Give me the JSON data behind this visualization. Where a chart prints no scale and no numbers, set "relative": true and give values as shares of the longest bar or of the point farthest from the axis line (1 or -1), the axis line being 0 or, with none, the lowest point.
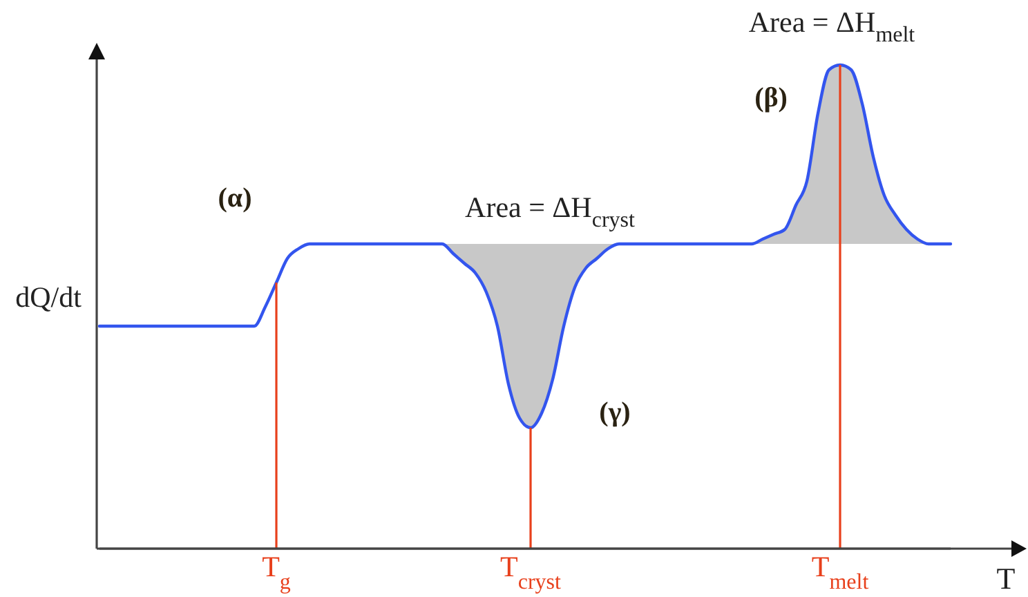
{
  "chart_data": {
    "type": "line",
    "relative": true,
    "tick_labels": "x",
    "xlabel": "T",
    "ylabel": "dQ/dt",
    "categories": [
      null,
      null,
      null,
      null,
      null,
      null,
      null,
      null,
      null,
      null,
      null,
      null,
      null,
      null,
      null,
      null,
      "T$_{g}$",
      null,
      null,
      null,
      null,
      null,
      null,
      null,
      null,
      null,
      null,
      null,
      null,
      null,
      null,
      null,
      null,
      null,
      null,
      null,
      null,
      null,
      null,
      "T$_{cryst}$",
      null,
      null,
      null,
      null,
      null,
      null,
      null,
      null,
      null,
      null,
      null,
      null,
      null,
      null,
      null,
      null,
      null,
      null,
      null,
      null,
      null,
      null,
      null,
      null,
      null,
      null,
      null,
      "T$_{melt}$",
      null,
      null,
      null,
      null,
      null,
      null,
      null,
      null,
      null,
      null
    ],
    "series": [
      {
        "color": "#3355ee",
        "values": [
          0.46,
          0.46,
          0.46,
          0.46,
          0.46,
          0.46,
          0.46,
          0.46,
          0.46,
          0.46,
          0.46,
          0.46,
          0.46,
          0.46,
          0.46,
          0.5,
          0.55,
          0.6,
          0.62,
          0.63,
          0.63,
          0.63,
          0.63,
          0.63,
          0.63,
          0.63,
          0.63,
          0.63,
          0.63,
          0.63,
          0.63,
          0.63,
          0.61,
          0.59,
          0.57,
          0.53,
          0.46,
          0.34,
          0.27,
          0.25,
          0.28,
          0.35,
          0.46,
          0.54,
          0.58,
          0.6,
          0.62,
          0.63,
          0.63,
          0.63,
          0.63,
          0.63,
          0.63,
          0.63,
          0.63,
          0.63,
          0.63,
          0.63,
          0.63,
          0.63,
          0.64,
          0.65,
          0.66,
          0.71,
          0.76,
          0.9,
          0.99,
          1,
          0.99,
          0.92,
          0.81,
          0.73,
          0.69,
          0.66,
          0.64,
          0.63,
          0.63,
          0.63
        ],
        "lower": [
          null,
          null,
          null,
          null,
          null,
          null,
          null,
          null,
          null,
          null,
          null,
          null,
          null,
          null,
          null,
          null,
          null,
          null,
          null,
          null,
          null,
          null,
          null,
          null,
          null,
          null,
          null,
          null,
          null,
          null,
          null,
          0.63,
          0.61,
          0.59,
          0.57,
          0.53,
          0.46,
          0.34,
          0.27,
          0.25,
          0.28,
          0.35,
          0.46,
          0.54,
          0.58,
          0.6,
          0.62,
          0.63,
          null,
          null,
          null,
          null,
          null,
          null,
          null,
          null,
          null,
          null,
          null,
          0.63,
          0.63,
          0.63,
          0.63,
          0.63,
          0.63,
          0.63,
          0.63,
          0.63,
          0.63,
          0.63,
          0.63,
          0.63,
          0.63,
          0.63,
          0.63,
          0.63,
          null,
          null
        ],
        "upper": [
          null,
          null,
          null,
          null,
          null,
          null,
          null,
          null,
          null,
          null,
          null,
          null,
          null,
          null,
          null,
          null,
          null,
          null,
          null,
          null,
          null,
          null,
          null,
          null,
          null,
          null,
          null,
          null,
          null,
          null,
          null,
          0.63,
          0.63,
          0.63,
          0.63,
          0.63,
          0.63,
          0.63,
          0.63,
          0.63,
          0.63,
          0.63,
          0.63,
          0.63,
          0.63,
          0.63,
          0.63,
          0.63,
          null,
          null,
          null,
          null,
          null,
          null,
          null,
          null,
          null,
          null,
          null,
          0.63,
          0.64,
          0.65,
          0.66,
          0.71,
          0.76,
          0.9,
          0.99,
          1,
          0.99,
          0.92,
          0.81,
          0.73,
          0.69,
          0.66,
          0.64,
          0.63,
          null,
          null
        ]
      }
    ],
    "ref_lines": [
      {
        "axis": "x",
        "value": "T$_{g}$",
        "color": "#e8401c"
      },
      {
        "axis": "x",
        "value": "T$_{cryst}$",
        "color": "#e8401c"
      },
      {
        "axis": "x",
        "value": "T$_{melt}$",
        "color": "#e8401c"
      }
    ],
    "annotations": [
      {
        "text": "Area = ΔH$_{melt}$",
        "x": "T$_{melt}$",
        "y": 1
      },
      {
        "text": "(β)",
        "x": "T$_{melt}$",
        "y": 1
      },
      {
        "text": "(α)",
        "x": "T$_{g}$",
        "y": 0.55
      },
      "Area = ΔH$_{cryst}$",
      {
        "text": "(γ)",
        "x": "T$_{cryst}$",
        "y": 0.25
      }
    ]
  }
}
